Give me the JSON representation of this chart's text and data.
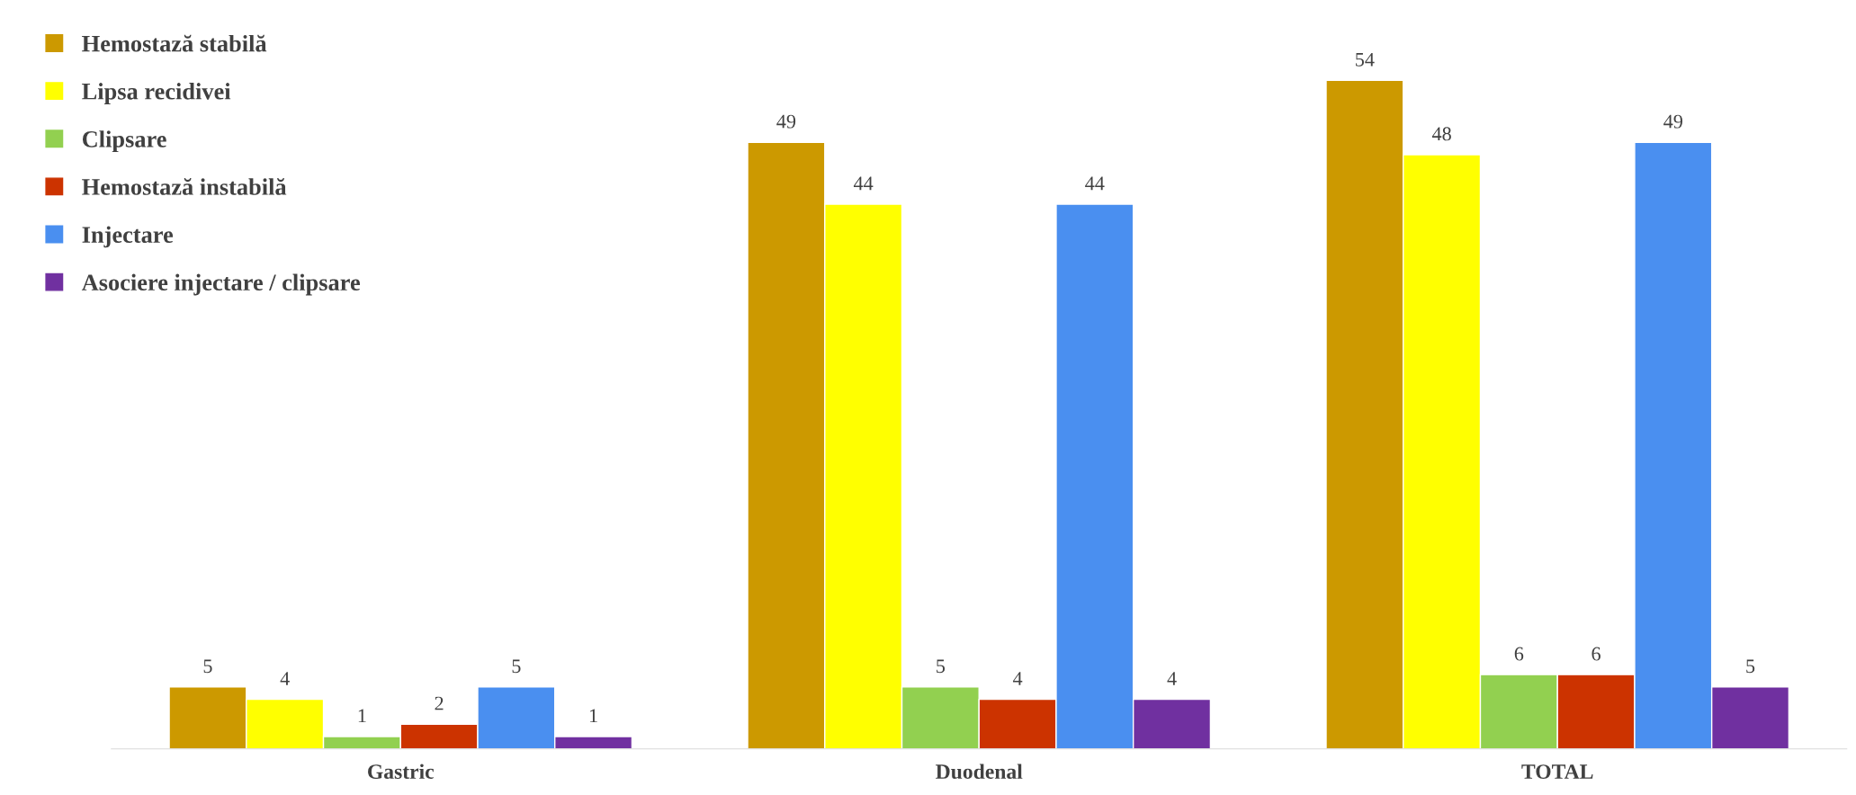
{
  "chart_data": {
    "type": "bar",
    "data_labels": true,
    "legend": "top left",
    "grid": false,
    "categories": [
      "Gastric",
      "Duodenal",
      "TOTAL"
    ],
    "series": [
      {
        "name": "Hemostază stabilă",
        "color": "#cc9900",
        "values": [
          5,
          49,
          54
        ]
      },
      {
        "name": "Lipsa recidivei",
        "color": "#ffff00",
        "values": [
          4,
          44,
          48
        ]
      },
      {
        "name": "Clipsare",
        "color": "#92d050",
        "values": [
          1,
          5,
          6
        ]
      },
      {
        "name": "Hemostază instabilă",
        "color": "#cc3300",
        "values": [
          2,
          4,
          6
        ]
      },
      {
        "name": "Injectare",
        "color": "#4a8ff0",
        "values": [
          5,
          44,
          49
        ]
      },
      {
        "name": "Asociere injectare / clipsare",
        "color": "#7030a0",
        "values": [
          1,
          4,
          5
        ]
      }
    ]
  }
}
